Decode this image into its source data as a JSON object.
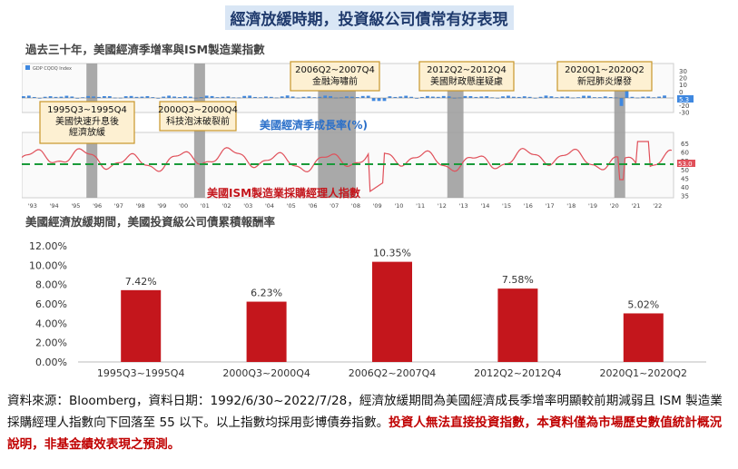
{
  "page": {
    "main_title": "經濟放緩時期，投資級公司債常有好表現",
    "top_section_title": "過去三十年，美國經濟季增率與ISM製造業指數",
    "bottom_section_title": "美國經濟放緩期間，美國投資級公司債累積報酬率",
    "footnote_plain": "資料來源：Bloomberg，資料日期：1992/6/30~2022/7/28，經濟放緩期間為美國經濟成長季增率明顯較前期減弱且 ISM 製造業採購經理人指數向下回落至 55 以下。以上指數均採用彭博債券指數。",
    "footnote_warning": "投資人無法直接投資指數，本資料僅為市場歷史數值統計概況說明，非基金績效表現之預測。"
  },
  "top_chart": {
    "legend_text": "GDP CQOQ Index",
    "gdp_label": "美國經濟季成長率(%)",
    "ism_label": "美國ISM製造業採購經理人指數",
    "gdp_axis_ticks": [
      "30",
      "20",
      "10",
      "0",
      "-10",
      "-20",
      "-30"
    ],
    "ism_axis_ticks": [
      "65",
      "60",
      "55",
      "50",
      "45",
      "40",
      "35"
    ],
    "ism_threshold": 55,
    "year_ticks": [
      "'93",
      "'94",
      "'95",
      "'96",
      "'97",
      "'98",
      "'99",
      "'00",
      "'01",
      "'02",
      "'03",
      "'04",
      "'05",
      "'06",
      "'07",
      "'08",
      "'09",
      "'10",
      "'11",
      "'12",
      "'13",
      "'14",
      "'15",
      "'16",
      "'17",
      "'18",
      "'19",
      "'20",
      "'21",
      "'22"
    ],
    "periods": [
      {
        "label": "1995Q3~1995Q4",
        "desc": "美國快速升息後\n經濟放緩",
        "start": 1995.5,
        "end": 1996.0
      },
      {
        "label": "2000Q3~2000Q4",
        "desc": "科技泡沫破裂前",
        "start": 2000.5,
        "end": 2001.0
      },
      {
        "label": "2006Q2~2007Q4",
        "desc": "金融海嘯前",
        "start": 2006.25,
        "end": 2008.0
      },
      {
        "label": "2012Q2~2012Q4",
        "desc": "美國財政懸崖疑慮",
        "start": 2012.25,
        "end": 2013.0
      },
      {
        "label": "2020Q1~2020Q2",
        "desc": "新冠肺炎爆發",
        "start": 2020.0,
        "end": 2020.5
      }
    ],
    "gdp_highlight": "5.3",
    "ism_highlight": "53.0",
    "colors": {
      "gdp": "#3f88e0",
      "ism": "#e0505a",
      "threshold": "#1a9a3a",
      "shade": "#9a9a9a",
      "callout_bg": "#fdf0d2",
      "callout_border": "#c8972a"
    }
  },
  "chart_data": {
    "type": "bar",
    "categories": [
      "1995Q3~1995Q4",
      "2000Q3~2000Q4",
      "2006Q2~2007Q4",
      "2012Q2~2012Q4",
      "2020Q1~2020Q2"
    ],
    "values": [
      7.42,
      6.23,
      10.35,
      7.58,
      5.02
    ],
    "value_labels": [
      "7.42%",
      "6.23%",
      "10.35%",
      "7.58%",
      "5.02%"
    ],
    "ylim": [
      0,
      12
    ],
    "ytick_labels": [
      "0.00%",
      "2.00%",
      "4.00%",
      "6.00%",
      "8.00%",
      "10.00%",
      "12.00%"
    ],
    "bar_color": "#c4161c",
    "title": "",
    "xlabel": "",
    "ylabel": "",
    "grid": false
  }
}
